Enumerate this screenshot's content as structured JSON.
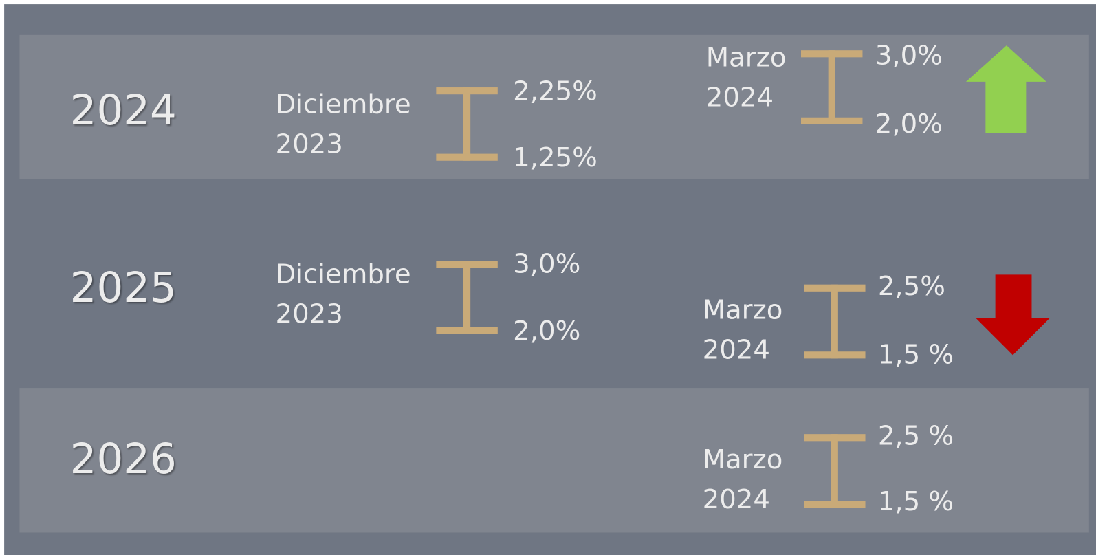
{
  "rows": [
    {
      "year": "2024",
      "december": {
        "label": [
          "Diciembre",
          "2023"
        ],
        "high": "2,25%",
        "low": "1,25%"
      },
      "march": {
        "label": [
          "Marzo",
          "2024"
        ],
        "high": "3,0%",
        "low": "2,0%"
      }
    },
    {
      "year": "2025",
      "december": {
        "label": [
          "Diciembre",
          "2023"
        ],
        "high": "3,0%",
        "low": "2,0%"
      },
      "march": {
        "label": [
          "Marzo",
          "2024"
        ],
        "high": "2,5%",
        "low": "1,5 %"
      }
    },
    {
      "year": "2026",
      "march": {
        "label": [
          "Marzo",
          "2024"
        ],
        "high": "2,5 %",
        "low": "1,5 %"
      }
    }
  ]
}
